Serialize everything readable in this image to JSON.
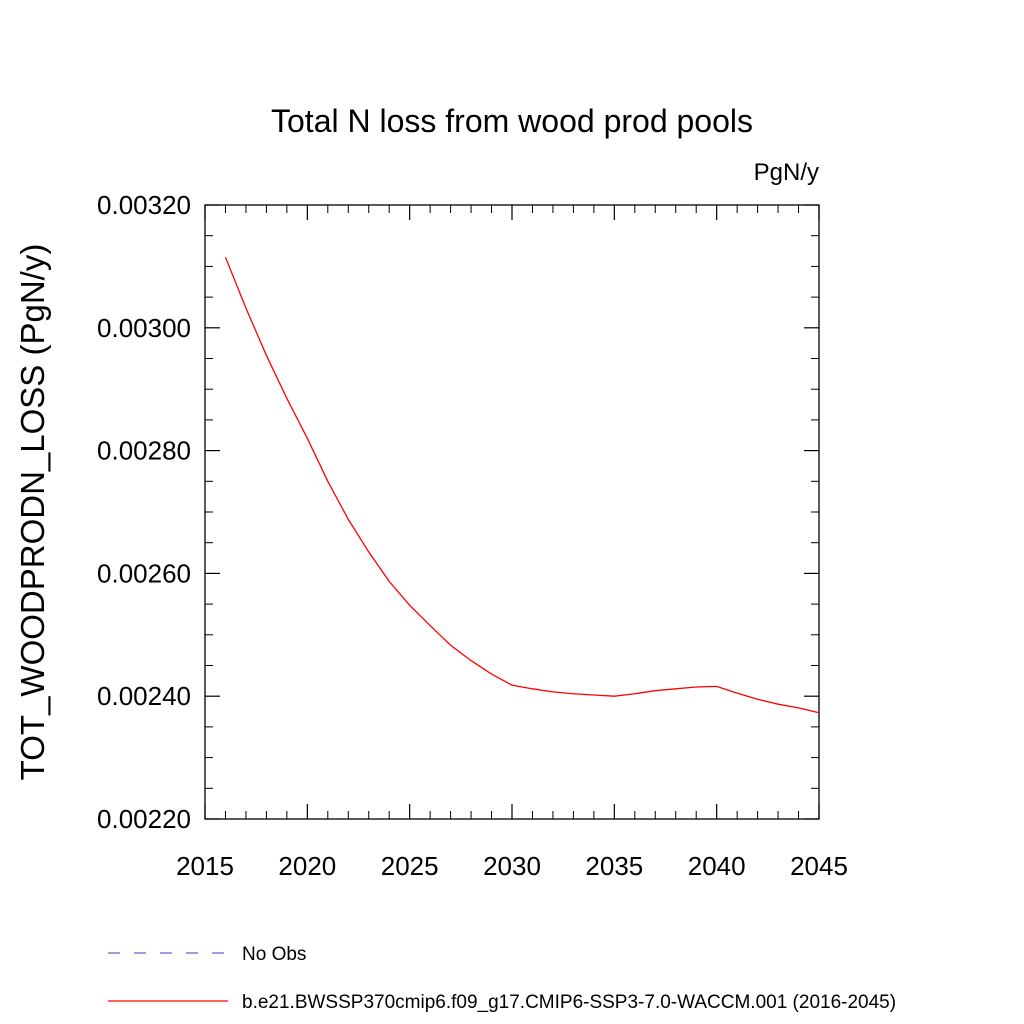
{
  "chart_data": {
    "type": "line",
    "title": "Total N loss from wood prod pools",
    "units": "PgN/y",
    "xlabel": "",
    "ylabel": "TOT_WOODPRODN_LOSS  (PgN/y)",
    "xlim": [
      2015,
      2045
    ],
    "ylim": [
      0.0022,
      0.0032
    ],
    "xticks": [
      "2015",
      "2020",
      "2025",
      "2030",
      "2035",
      "2040",
      "2045"
    ],
    "yticks": [
      "0.00220",
      "0.00240",
      "0.00260",
      "0.00280",
      "0.00300",
      "0.00320"
    ],
    "grid": false,
    "legend_position": "bottom",
    "series": [
      {
        "name": "No Obs",
        "color": "#6b5bd6",
        "dash": "dashed",
        "x": [],
        "y": []
      },
      {
        "name": "b.e21.BWSSP370cmip6.f09_g17.CMIP6-SSP3-7.0-WACCM.001 (2016-2045)",
        "color": "#ff0000",
        "dash": "solid",
        "x": [
          2016,
          2017,
          2018,
          2019,
          2020,
          2021,
          2022,
          2023,
          2024,
          2025,
          2026,
          2027,
          2028,
          2029,
          2030,
          2031,
          2032,
          2033,
          2034,
          2035,
          2036,
          2037,
          2038,
          2039,
          2040,
          2041,
          2042,
          2043,
          2044,
          2045
        ],
        "y": [
          0.003115,
          0.003032,
          0.002955,
          0.002885,
          0.00282,
          0.00275,
          0.002688,
          0.002635,
          0.002587,
          0.002548,
          0.002515,
          0.002483,
          0.002458,
          0.002436,
          0.002418,
          0.002412,
          0.002407,
          0.002404,
          0.002402,
          0.0024,
          0.002404,
          0.002409,
          0.002412,
          0.002415,
          0.002416,
          0.002405,
          0.002395,
          0.002387,
          0.002381,
          0.002373
        ]
      }
    ]
  }
}
